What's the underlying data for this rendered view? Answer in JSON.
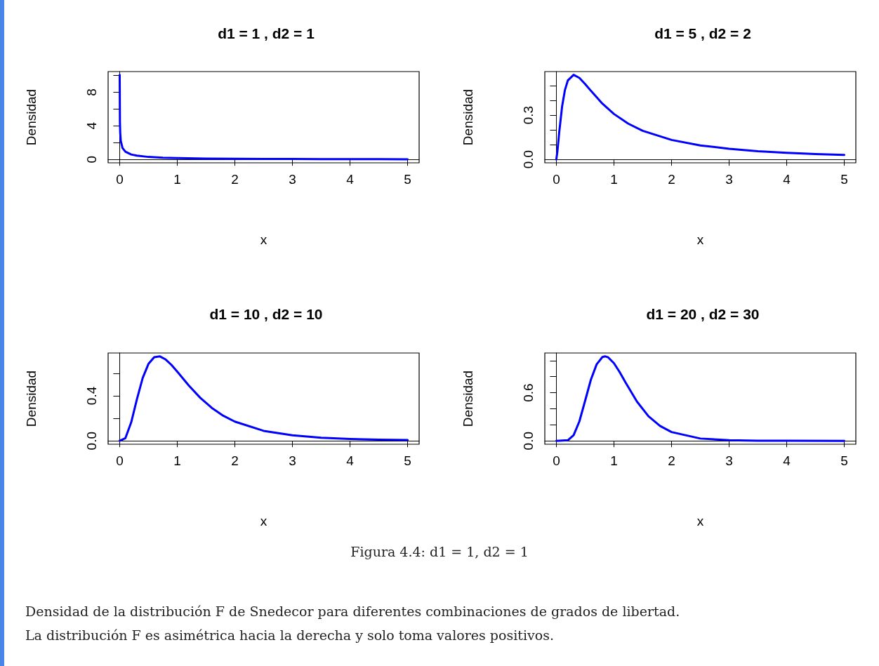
{
  "chart_data": [
    {
      "type": "line",
      "title": "d1 = 1 , d2 = 1",
      "xlabel": "x",
      "ylabel": "Densidad",
      "x": [
        0.001,
        0.005,
        0.01,
        0.02,
        0.05,
        0.1,
        0.2,
        0.3,
        0.5,
        0.75,
        1,
        1.5,
        2,
        2.5,
        3,
        3.5,
        4,
        4.5,
        5
      ],
      "series": [
        {
          "color": "#0000ff",
          "values": [
            10.06,
            4.48,
            3.15,
            2.21,
            1.36,
            0.92,
            0.59,
            0.45,
            0.3,
            0.21,
            0.16,
            0.1,
            0.08,
            0.06,
            0.05,
            0.04,
            0.03,
            0.03,
            0.02
          ]
        }
      ],
      "xlim": [
        -0.2,
        5.2
      ],
      "xticks": [
        0,
        1,
        2,
        3,
        4,
        5
      ],
      "ylim": [
        -0.4,
        10.46
      ],
      "yticks": [
        0,
        {
          "value": 2,
          "label": null
        },
        4,
        {
          "value": 6,
          "label": null
        },
        8,
        {
          "value": 10,
          "label": null
        }
      ]
    },
    {
      "type": "line",
      "title": "d1 = 5 , d2 = 2",
      "xlabel": "x",
      "ylabel": "Densidad",
      "x": [
        0,
        0.02,
        0.05,
        0.1,
        0.15,
        0.2,
        0.3,
        0.4,
        0.5,
        0.6,
        0.8,
        1,
        1.25,
        1.5,
        2,
        2.5,
        3,
        3.5,
        4,
        4.5,
        5
      ],
      "series": [
        {
          "color": "#0000ff",
          "values": [
            0,
            0.059,
            0.183,
            0.358,
            0.471,
            0.535,
            0.573,
            0.552,
            0.511,
            0.465,
            0.378,
            0.308,
            0.242,
            0.194,
            0.132,
            0.095,
            0.072,
            0.056,
            0.045,
            0.037,
            0.031
          ]
        }
      ],
      "xlim": [
        -0.2,
        5.2
      ],
      "xticks": [
        0,
        1,
        2,
        3,
        4,
        5
      ],
      "ylim": [
        -0.023,
        0.595
      ],
      "yticks": [
        {
          "value": 0,
          "label": "0.0"
        },
        {
          "value": 0.1,
          "label": null
        },
        {
          "value": 0.2,
          "label": null
        },
        0.3,
        {
          "value": 0.4,
          "label": null
        },
        {
          "value": 0.5,
          "label": null
        }
      ]
    },
    {
      "type": "line",
      "title": "d1 = 10 , d2 = 10",
      "xlabel": "x",
      "ylabel": "Densidad",
      "x": [
        0,
        0.1,
        0.2,
        0.3,
        0.4,
        0.5,
        0.6,
        0.7,
        0.8,
        0.9,
        1,
        1.2,
        1.4,
        1.6,
        1.8,
        2,
        2.5,
        3,
        3.5,
        4,
        4.5,
        5
      ],
      "series": [
        {
          "color": "#0000ff",
          "values": [
            0,
            0.024,
            0.163,
            0.37,
            0.558,
            0.683,
            0.743,
            0.75,
            0.722,
            0.674,
            0.615,
            0.492,
            0.382,
            0.293,
            0.223,
            0.171,
            0.089,
            0.049,
            0.028,
            0.017,
            0.01,
            0.007
          ]
        }
      ],
      "xlim": [
        -0.2,
        5.2
      ],
      "xticks": [
        0,
        1,
        2,
        3,
        4,
        5
      ],
      "ylim": [
        -0.03,
        0.78
      ],
      "yticks": [
        {
          "value": 0,
          "label": "0.0"
        },
        {
          "value": 0.2,
          "label": null
        },
        0.4,
        {
          "value": 0.6,
          "label": null
        }
      ]
    },
    {
      "type": "line",
      "title": "d1 = 20 , d2 = 30",
      "xlabel": "x",
      "ylabel": "Densidad",
      "x": [
        0,
        0.2,
        0.3,
        0.4,
        0.5,
        0.6,
        0.7,
        0.8,
        0.85,
        0.9,
        1,
        1.1,
        1.2,
        1.4,
        1.6,
        1.8,
        2,
        2.5,
        3,
        3.5,
        4,
        5
      ],
      "series": [
        {
          "color": "#0000ff",
          "values": [
            0,
            0.008,
            0.07,
            0.242,
            0.5,
            0.762,
            0.953,
            1.044,
            1.052,
            1.04,
            0.967,
            0.856,
            0.729,
            0.489,
            0.307,
            0.186,
            0.11,
            0.029,
            0.008,
            0.002,
            0.001,
            0
          ]
        }
      ],
      "xlim": [
        -0.2,
        5.2
      ],
      "xticks": [
        0,
        1,
        2,
        3,
        4,
        5
      ],
      "ylim": [
        -0.042,
        1.094
      ],
      "yticks": [
        {
          "value": 0,
          "label": "0.0"
        },
        {
          "value": 0.2,
          "label": null
        },
        {
          "value": 0.4,
          "label": null
        },
        0.6,
        {
          "value": 0.8,
          "label": null
        },
        {
          "value": 1.0,
          "label": null
        }
      ],
      "annotations": [
        "Figura 4.4: d1 = 1, d2 = 1",
        "Densidad de la distribución F de Snedecor para diferentes combinaciones de grados de libertad.",
        "La distribución F es asimétrica hacia la derecha y solo toma valores positivos."
      ]
    }
  ]
}
